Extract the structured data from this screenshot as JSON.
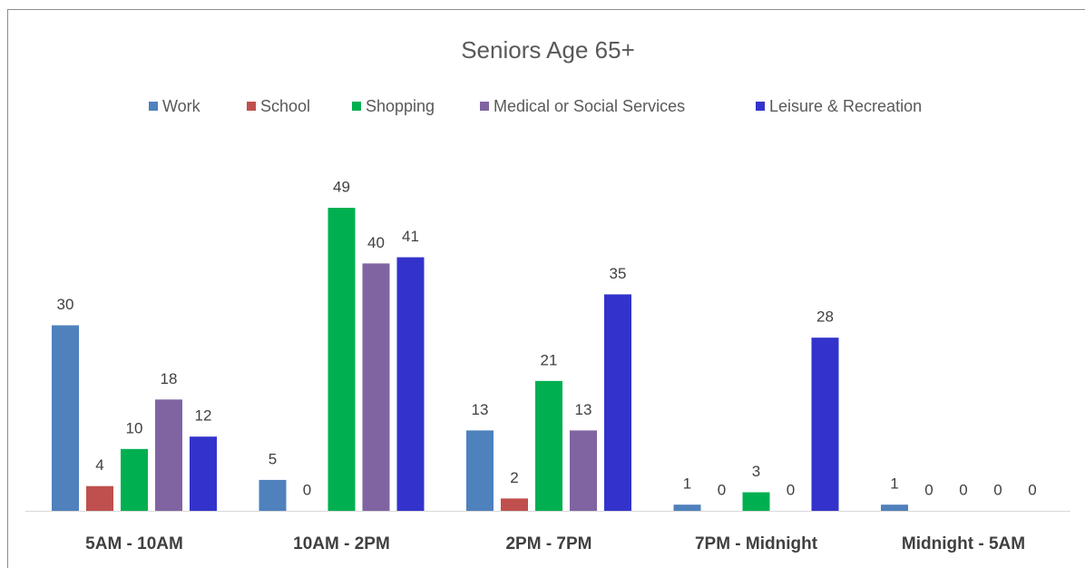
{
  "chart_data": {
    "type": "bar",
    "title": "Seniors Age 65+",
    "categories": [
      "5AM - 10AM",
      "10AM - 2PM",
      "2PM - 7PM",
      "7PM - Midnight",
      "Midnight - 5AM"
    ],
    "series": [
      {
        "name": "Work",
        "color": "#4f81bd",
        "values": [
          30,
          5,
          13,
          1,
          1
        ]
      },
      {
        "name": "School",
        "color": "#c0504d",
        "values": [
          4,
          0,
          2,
          0,
          0
        ]
      },
      {
        "name": "Shopping",
        "color": "#00b050",
        "values": [
          10,
          49,
          21,
          3,
          0
        ]
      },
      {
        "name": "Medical or Social Services",
        "color": "#8064a2",
        "values": [
          18,
          40,
          13,
          0,
          0
        ]
      },
      {
        "name": "Leisure & Recreation",
        "color": "#3333cc",
        "values": [
          12,
          41,
          35,
          28,
          0
        ]
      }
    ]
  }
}
